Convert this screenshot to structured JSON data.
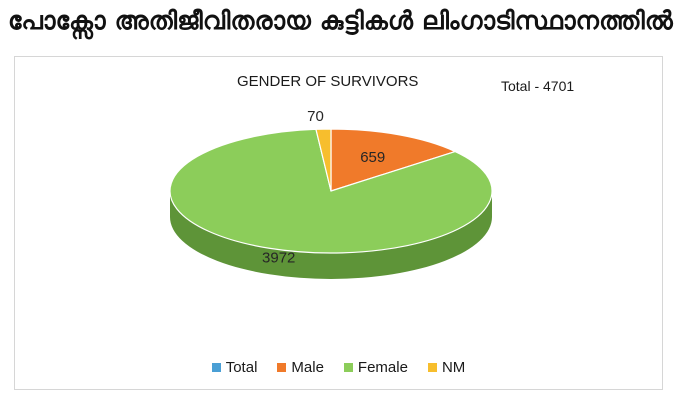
{
  "heading": "പോക്സോ അതിജീവിതരായ കുട്ടികൾ ലിംഗാടിസ്ഥാനത്തിൽ",
  "chart_data": {
    "type": "pie",
    "style": "3d",
    "title": "GENDER OF SURVIVORS",
    "note": "Total -  4701",
    "legend_position": "bottom",
    "legend": [
      "Total",
      "Male",
      "Female",
      "NM"
    ],
    "categories": [
      "Total",
      "Male",
      "Female",
      "NM"
    ],
    "values": [
      0,
      659,
      3972,
      70
    ],
    "data_labels": [
      "",
      "659",
      "3972",
      "70"
    ],
    "colors": {
      "Total": "#4a9fd5",
      "Male": "#f07a2a",
      "Female": "#8ccd5a",
      "NM": "#f7be2d"
    },
    "side_colors": {
      "Total": "#3a7fae",
      "Male": "#c05d1c",
      "Female": "#5e9438",
      "NM": "#c7951c"
    }
  }
}
